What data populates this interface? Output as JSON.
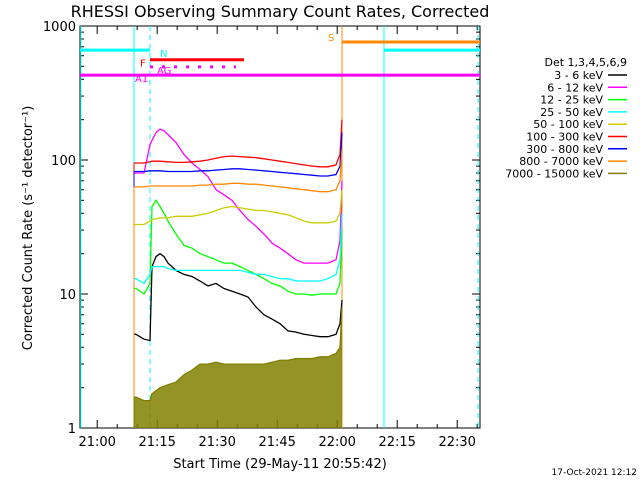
{
  "chart_data": {
    "type": "line",
    "title": "RHESSI Observing Summary Count Rates, Corrected",
    "xlabel": "Start Time (29-May-11 20:55:42)",
    "ylabel": "Corrected Count Rate (s⁻¹ detector⁻¹)",
    "yscale": "log",
    "ylim": [
      1,
      1000
    ],
    "xlim_minutes_after_start": [
      0,
      100
    ],
    "x_tick_labels": [
      "21:00",
      "21:15",
      "21:30",
      "21:45",
      "22:00",
      "22:15",
      "22:30"
    ],
    "x_tick_minutes_after_start": [
      4.3,
      19.3,
      34.3,
      49.3,
      64.3,
      79.3,
      94.3
    ],
    "y_tick_labels": [
      "1",
      "10",
      "100",
      "1000"
    ],
    "y_tick_values": [
      1,
      10,
      100,
      1000
    ],
    "legend_title": "Det 1,3,4,5,6,9",
    "legend_placement": "right",
    "footer": "17-Oct-2021 12:12",
    "flag_bars": [
      {
        "label": "N",
        "color": "#00ffff",
        "level": 660,
        "x_start": 0,
        "x_end": 17.5
      },
      {
        "label": "F",
        "color": "#ff0000",
        "level": 560,
        "x_start": 17.5,
        "x_end": 41
      },
      {
        "label": "AG",
        "color": "#ff00ff",
        "level": 495,
        "x_start": 17.5,
        "x_end": 39,
        "dotted": true
      },
      {
        "label": "A1",
        "color": "#ff00ff",
        "level": 430,
        "x_start": 0,
        "x_end": 100
      },
      {
        "label": "S",
        "color": "#ff8800",
        "level": 760,
        "x_start": 65.5,
        "x_end": 100
      },
      {
        "label": "",
        "color": "#00ffff",
        "level": 660,
        "x_start": 76,
        "x_end": 100
      }
    ],
    "vertical_markers": [
      {
        "x": 0.2,
        "color": "#00ffff",
        "style": "solid"
      },
      {
        "x": 13.5,
        "color": "#00ffff",
        "style": "solid"
      },
      {
        "x": 17.5,
        "color": "#00ffff",
        "style": "dashed"
      },
      {
        "x": 65.5,
        "color": "#ff8800",
        "style": "solid"
      },
      {
        "x": 76,
        "color": "#00ffff",
        "style": "solid"
      },
      {
        "x": 99.5,
        "color": "#00ffff",
        "style": "dashed"
      }
    ],
    "series": [
      {
        "name": "3 - 6 keV",
        "color": "#000000",
        "x": [
          13.5,
          14,
          16,
          17.5,
          18,
          19,
          20,
          21,
          22,
          24,
          26,
          28,
          30,
          32,
          34,
          36,
          38,
          40,
          42,
          44,
          46,
          48,
          50,
          52,
          54,
          56,
          58,
          60,
          62,
          64,
          65,
          65.5
        ],
        "y": [
          5,
          5,
          4.6,
          4.5,
          16,
          19,
          20,
          19,
          17,
          15,
          14,
          13.5,
          12.5,
          11.5,
          12,
          11,
          10.5,
          10,
          9.5,
          8,
          7,
          6.5,
          6,
          5.3,
          5.2,
          5,
          4.9,
          4.8,
          4.8,
          5,
          6,
          9
        ]
      },
      {
        "name": "6 - 12 keV",
        "color": "#ff00ff",
        "x": [
          13.5,
          14,
          16,
          17.5,
          18,
          19,
          20,
          21,
          22,
          24,
          26,
          28,
          30,
          32,
          34,
          36,
          38,
          40,
          42,
          44,
          46,
          48,
          50,
          52,
          54,
          56,
          58,
          60,
          62,
          64,
          65,
          65.5
        ],
        "y": [
          80,
          80,
          80,
          130,
          140,
          160,
          170,
          165,
          155,
          135,
          110,
          95,
          85,
          75,
          60,
          55,
          50,
          42,
          36,
          32,
          28,
          24,
          22,
          20,
          18,
          17,
          17,
          17,
          17,
          18,
          25,
          70
        ]
      },
      {
        "name": "12 - 25 keV",
        "color": "#00ff00",
        "x": [
          13.5,
          14,
          16,
          17.5,
          18,
          19,
          20,
          21,
          22,
          24,
          26,
          28,
          30,
          32,
          34,
          36,
          38,
          40,
          42,
          44,
          46,
          48,
          50,
          52,
          54,
          56,
          58,
          60,
          62,
          64,
          65,
          65.5
        ],
        "y": [
          11,
          11,
          10,
          12,
          45,
          50,
          45,
          40,
          35,
          28,
          23,
          22,
          20,
          19,
          18,
          17,
          17,
          16,
          15,
          14,
          13,
          12,
          11.5,
          10.5,
          10,
          10,
          9.8,
          10,
          10,
          10,
          12,
          30
        ]
      },
      {
        "name": "25 - 50 keV",
        "color": "#00ffff",
        "x": [
          13.5,
          14,
          16,
          17.5,
          18,
          19,
          20,
          21,
          22,
          24,
          26,
          28,
          30,
          32,
          34,
          36,
          38,
          40,
          42,
          44,
          46,
          48,
          50,
          52,
          54,
          56,
          58,
          60,
          62,
          64,
          65,
          65.5
        ],
        "y": [
          13,
          13,
          12,
          14,
          16,
          16,
          16,
          16,
          15.5,
          15,
          15,
          15,
          15,
          15,
          15,
          15,
          15,
          15,
          14.5,
          14,
          14,
          13.5,
          13,
          13,
          12.5,
          12.5,
          12.5,
          12.5,
          13,
          14,
          18,
          40
        ]
      },
      {
        "name": "50 - 100 keV",
        "color": "#cccc00",
        "x": [
          13.5,
          14,
          16,
          17.5,
          18,
          20,
          22,
          24,
          26,
          28,
          30,
          32,
          34,
          36,
          38,
          40,
          42,
          44,
          46,
          48,
          50,
          52,
          54,
          56,
          58,
          60,
          62,
          64,
          65,
          65.5
        ],
        "y": [
          33,
          33,
          33,
          35,
          36,
          37,
          37,
          38,
          38,
          38,
          39,
          40,
          42,
          44,
          45,
          44,
          43,
          42,
          42,
          41,
          40,
          39,
          37,
          35,
          34,
          34,
          34,
          35,
          40,
          60
        ]
      },
      {
        "name": "100 - 300 keV",
        "color": "#ff0000",
        "x": [
          13.5,
          14,
          16,
          17.5,
          18,
          20,
          22,
          24,
          26,
          28,
          30,
          32,
          34,
          36,
          38,
          40,
          42,
          44,
          46,
          48,
          50,
          52,
          54,
          56,
          58,
          60,
          62,
          64,
          65,
          65.5
        ],
        "y": [
          95,
          95,
          95,
          97,
          98,
          98,
          97,
          96,
          96,
          97,
          98,
          100,
          103,
          106,
          107,
          106,
          105,
          104,
          102,
          100,
          98,
          96,
          94,
          92,
          90,
          89,
          89,
          92,
          110,
          200
        ]
      },
      {
        "name": "300 - 800 keV",
        "color": "#0000ff",
        "x": [
          13.5,
          14,
          16,
          17.5,
          18,
          20,
          22,
          24,
          26,
          28,
          30,
          32,
          34,
          36,
          38,
          40,
          42,
          44,
          46,
          48,
          50,
          52,
          54,
          56,
          58,
          60,
          62,
          64,
          65,
          65.5
        ],
        "y": [
          82,
          82,
          82,
          83,
          83,
          83,
          82,
          82,
          82,
          82,
          83,
          83,
          84,
          85,
          86,
          86,
          85,
          84,
          83,
          82,
          81,
          80,
          79,
          78,
          77,
          76,
          76,
          78,
          90,
          160
        ]
      },
      {
        "name": "800 - 7000 keV",
        "color": "#ff8800",
        "x": [
          13.5,
          14,
          16,
          17.5,
          18,
          20,
          22,
          24,
          26,
          28,
          30,
          32,
          34,
          36,
          38,
          40,
          42,
          44,
          46,
          48,
          50,
          52,
          54,
          56,
          58,
          60,
          62,
          64,
          65,
          65.5
        ],
        "y": [
          63,
          63,
          63,
          64,
          64,
          64,
          64,
          64,
          64,
          64,
          65,
          65,
          66,
          66,
          67,
          67,
          66,
          66,
          65,
          64,
          63,
          62,
          61,
          60,
          59,
          58,
          58,
          60,
          70,
          120
        ]
      },
      {
        "name": "7000 - 15000 keV",
        "color": "#808000",
        "x": [
          13.5,
          14,
          16,
          17.5,
          18,
          20,
          22,
          24,
          26,
          28,
          30,
          32,
          34,
          36,
          38,
          40,
          42,
          44,
          46,
          48,
          50,
          52,
          54,
          56,
          58,
          60,
          62,
          64,
          65,
          65.5
        ],
        "y": [
          1.7,
          1.7,
          1.6,
          1.6,
          1.8,
          2,
          2.1,
          2.2,
          2.5,
          2.7,
          3,
          3,
          3.1,
          3,
          3,
          3,
          3,
          3,
          3,
          3.1,
          3.2,
          3.2,
          3.3,
          3.3,
          3.3,
          3.4,
          3.4,
          3.6,
          4,
          8
        ]
      }
    ]
  }
}
